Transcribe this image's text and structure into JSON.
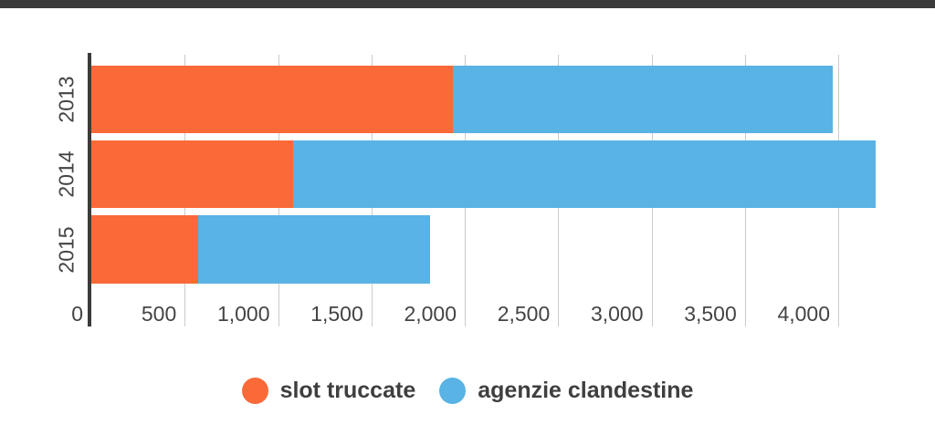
{
  "page": {
    "background_color": "#ffffff",
    "top_bar_color": "#3b3b3b"
  },
  "chart_data": {
    "type": "bar",
    "orientation": "horizontal",
    "stacked": true,
    "title": "",
    "xlabel": "",
    "ylabel": "",
    "categories": [
      "2013",
      "2014",
      "2015"
    ],
    "series": [
      {
        "name": "slot truccate",
        "color": "#fa6a38",
        "values": [
          1935,
          1080,
          570
        ]
      },
      {
        "name": "agenzie clandestine",
        "color": "#59b3e4",
        "values": [
          2035,
          3120,
          1245
        ]
      }
    ],
    "totals": [
      3970,
      4200,
      1815
    ],
    "x_ticks": [
      0,
      500,
      1000,
      1500,
      2000,
      2500,
      3000,
      3500,
      4000
    ],
    "x_tick_labels": [
      "0",
      "500",
      "1,000",
      "1,500",
      "2,000",
      "2,500",
      "3,000",
      "3,500",
      "4,000"
    ],
    "xlim": [
      0,
      4470
    ],
    "grid": true,
    "axis_line_color": "#3b3b3b",
    "gridline_color": "#cbcbcb",
    "tick_label_color": "#444444",
    "legend_position": "bottom"
  }
}
